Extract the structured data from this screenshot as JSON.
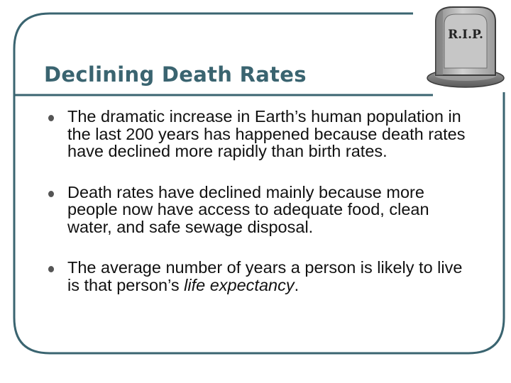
{
  "slide": {
    "title": "Declining Death Rates",
    "bullets": [
      {
        "text": "The dramatic increase in Earth’s human population in the last 200 years has happened because death rates have declined more rapidly than birth rates."
      },
      {
        "text": "Death rates have declined mainly because more people now have access to adequate food, clean water, and safe sewage disposal."
      },
      {
        "text_before": "The average number of years a person is likely to live is that person’s ",
        "text_emphasis": "life expectancy",
        "text_after": "."
      }
    ],
    "tombstone_label": "R.I.P.",
    "colors": {
      "title": "#3a6470",
      "frame": "#3a6470",
      "bullet_dot": "#555555",
      "text": "#111111"
    }
  },
  "icons": {
    "bullet": "bullet-dot-icon",
    "decoration": "tombstone-icon"
  }
}
